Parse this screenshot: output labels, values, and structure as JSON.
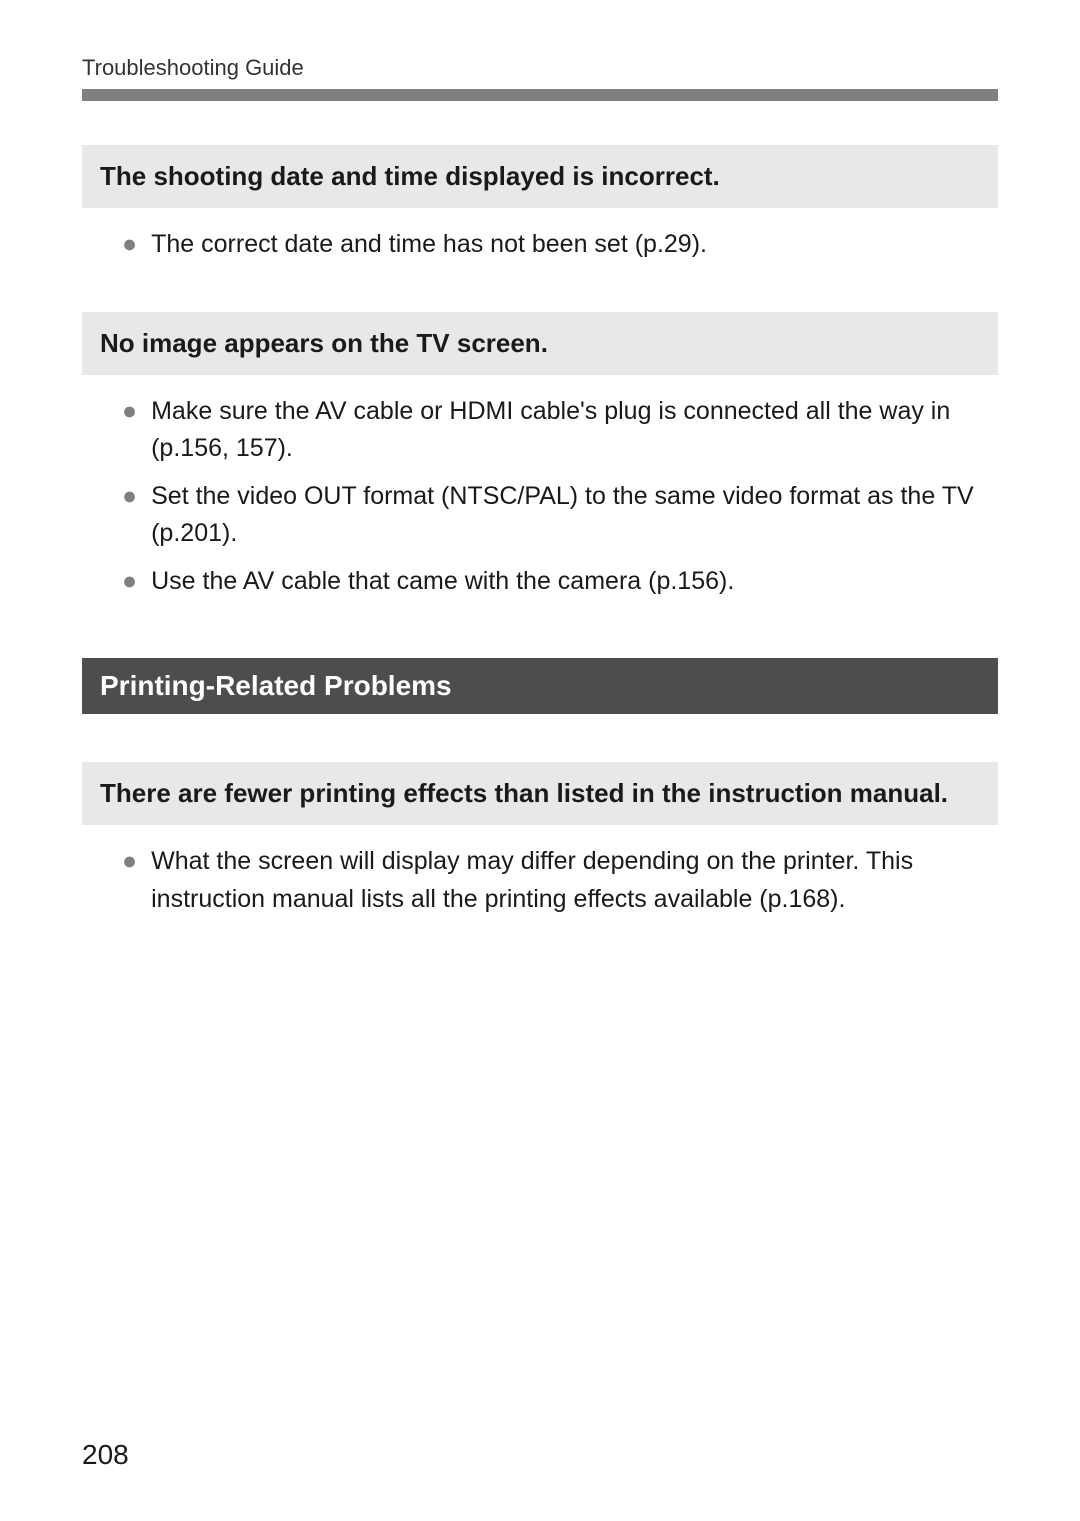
{
  "header": {
    "title": "Troubleshooting Guide"
  },
  "issues": [
    {
      "title": "The shooting date and time displayed is incorrect.",
      "bullets": [
        "The correct date and time has not been set (p.29)."
      ]
    },
    {
      "title": "No image appears on the TV screen.",
      "bullets": [
        "Make sure the AV cable or HDMI cable's plug is connected all the way in (p.156, 157).",
        "Set the video OUT format (NTSC/PAL) to the same video format as the TV (p.201).",
        "Use the AV cable that came with the camera (p.156)."
      ]
    }
  ],
  "sectionHeader": "Printing-Related Problems",
  "printingIssues": [
    {
      "title": "There are fewer printing effects than listed in the instruction manual.",
      "bullets": [
        "What the screen will display may differ depending on the printer. This instruction manual lists all the printing effects available (p.168)."
      ]
    }
  ],
  "pageNumber": "208",
  "colors": {
    "headerBar": "#808080",
    "issueBoxBg": "#e8e8e8",
    "sectionHeaderBg": "#4d4d4d",
    "bulletMarker": "#808080",
    "textColor": "#1a1a1a",
    "pageBg": "#ffffff"
  }
}
